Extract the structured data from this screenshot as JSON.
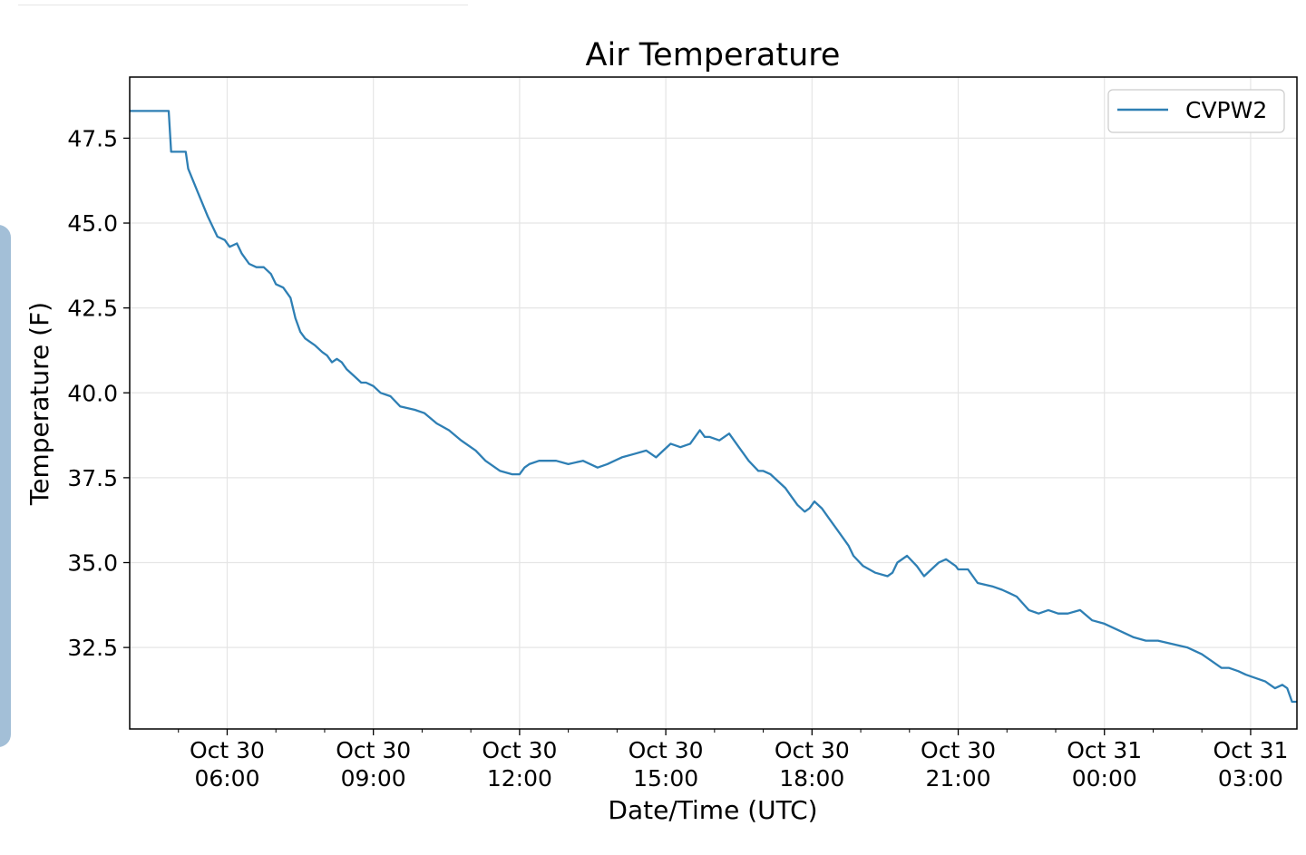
{
  "chart_data": {
    "type": "line",
    "title": "Air Temperature",
    "xlabel": "Date/Time (UTC)",
    "ylabel": "Temperature (F)",
    "grid": true,
    "legend_position": "top-right",
    "line_color": "#2e7fb4",
    "x_unit": "hours since Oct 30 00:00 UTC",
    "xlim": [
      4.0,
      27.95
    ],
    "ylim": [
      30.1,
      49.3
    ],
    "x_ticks": [
      {
        "x": 6,
        "line1": "Oct 30",
        "line2": "06:00"
      },
      {
        "x": 9,
        "line1": "Oct 30",
        "line2": "09:00"
      },
      {
        "x": 12,
        "line1": "Oct 30",
        "line2": "12:00"
      },
      {
        "x": 15,
        "line1": "Oct 30",
        "line2": "15:00"
      },
      {
        "x": 18,
        "line1": "Oct 30",
        "line2": "18:00"
      },
      {
        "x": 21,
        "line1": "Oct 30",
        "line2": "21:00"
      },
      {
        "x": 24,
        "line1": "Oct 31",
        "line2": "00:00"
      },
      {
        "x": 27,
        "line1": "Oct 31",
        "line2": "03:00"
      }
    ],
    "x_minor_ticks": [
      5,
      7,
      8,
      10,
      11,
      13,
      14,
      16,
      17,
      19,
      20,
      22,
      23,
      25,
      26
    ],
    "y_ticks": [
      {
        "y": 32.5,
        "label": "32.5"
      },
      {
        "y": 35.0,
        "label": "35.0"
      },
      {
        "y": 37.5,
        "label": "37.5"
      },
      {
        "y": 40.0,
        "label": "40.0"
      },
      {
        "y": 42.5,
        "label": "42.5"
      },
      {
        "y": 45.0,
        "label": "45.0"
      },
      {
        "y": 47.5,
        "label": "47.5"
      }
    ],
    "series": [
      {
        "name": "CVPW2",
        "x": [
          4.0,
          4.8,
          4.85,
          5.15,
          5.2,
          5.4,
          5.6,
          5.8,
          5.95,
          6.05,
          6.2,
          6.3,
          6.45,
          6.6,
          6.75,
          6.9,
          7.0,
          7.15,
          7.3,
          7.4,
          7.5,
          7.6,
          7.7,
          7.8,
          7.95,
          8.05,
          8.15,
          8.25,
          8.35,
          8.45,
          8.6,
          8.75,
          8.85,
          9.0,
          9.15,
          9.35,
          9.55,
          9.85,
          10.05,
          10.3,
          10.55,
          10.8,
          11.1,
          11.3,
          11.6,
          11.85,
          12.0,
          12.1,
          12.2,
          12.4,
          12.6,
          12.75,
          13.0,
          13.3,
          13.6,
          13.8,
          14.1,
          14.35,
          14.6,
          14.8,
          14.95,
          15.1,
          15.3,
          15.5,
          15.7,
          15.8,
          15.9,
          16.1,
          16.3,
          16.45,
          16.55,
          16.7,
          16.9,
          17.0,
          17.15,
          17.3,
          17.45,
          17.55,
          17.7,
          17.85,
          17.95,
          18.05,
          18.2,
          18.35,
          18.55,
          18.75,
          18.85,
          19.05,
          19.3,
          19.55,
          19.65,
          19.75,
          19.95,
          20.15,
          20.3,
          20.6,
          20.75,
          20.95,
          21.0,
          21.2,
          21.4,
          21.7,
          21.9,
          22.05,
          22.2,
          22.45,
          22.65,
          22.85,
          23.05,
          23.25,
          23.5,
          23.75,
          24.0,
          24.3,
          24.6,
          24.85,
          25.1,
          25.4,
          25.7,
          26.0,
          26.2,
          26.4,
          26.55,
          26.75,
          26.9,
          27.1,
          27.3,
          27.5,
          27.65,
          27.75,
          27.85,
          27.95
        ],
        "y": [
          48.3,
          48.3,
          47.1,
          47.1,
          46.6,
          45.9,
          45.2,
          44.6,
          44.5,
          44.3,
          44.4,
          44.1,
          43.8,
          43.7,
          43.7,
          43.5,
          43.2,
          43.1,
          42.8,
          42.2,
          41.8,
          41.6,
          41.5,
          41.4,
          41.2,
          41.1,
          40.9,
          41.0,
          40.9,
          40.7,
          40.5,
          40.3,
          40.3,
          40.2,
          40.0,
          39.9,
          39.6,
          39.5,
          39.4,
          39.1,
          38.9,
          38.6,
          38.3,
          38.0,
          37.7,
          37.6,
          37.6,
          37.8,
          37.9,
          38.0,
          38.0,
          38.0,
          37.9,
          38.0,
          37.8,
          37.9,
          38.1,
          38.2,
          38.3,
          38.1,
          38.3,
          38.5,
          38.4,
          38.5,
          38.9,
          38.7,
          38.7,
          38.6,
          38.8,
          38.5,
          38.3,
          38.0,
          37.7,
          37.7,
          37.6,
          37.4,
          37.2,
          37.0,
          36.7,
          36.5,
          36.6,
          36.8,
          36.6,
          36.3,
          35.9,
          35.5,
          35.2,
          34.9,
          34.7,
          34.6,
          34.7,
          35.0,
          35.2,
          34.9,
          34.6,
          35.0,
          35.1,
          34.9,
          34.8,
          34.8,
          34.4,
          34.3,
          34.2,
          34.1,
          34.0,
          33.6,
          33.5,
          33.6,
          33.5,
          33.5,
          33.6,
          33.3,
          33.2,
          33.0,
          32.8,
          32.7,
          32.7,
          32.6,
          32.5,
          32.3,
          32.1,
          31.9,
          31.9,
          31.8,
          31.7,
          31.6,
          31.5,
          31.3,
          31.4,
          31.3,
          30.9,
          30.9
        ]
      }
    ]
  }
}
